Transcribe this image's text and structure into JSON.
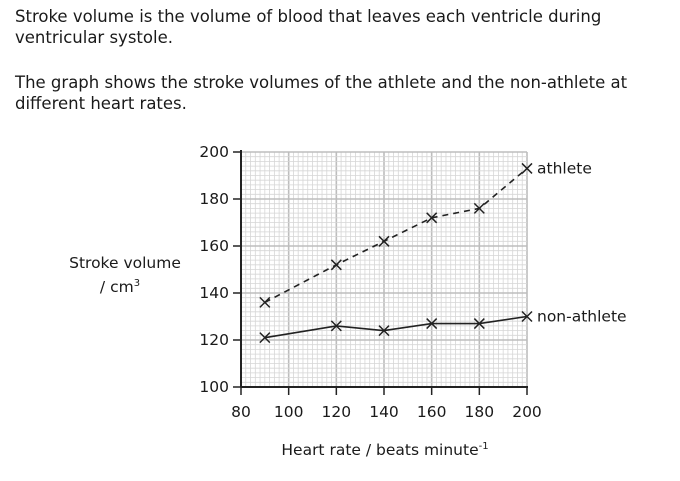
{
  "intro": "Stroke volume is the volume of blood that leaves each ventricle during ventricular systole.",
  "description": "The graph shows the stroke volumes of the athlete and the non-athlete at different heart rates.",
  "chart_data": {
    "type": "line",
    "title": "",
    "xlabel": "Heart rate / beats minute",
    "xlabel_sup": "-1",
    "ylabel_line1": "Stroke volume",
    "ylabel_line2": "/ cm",
    "ylabel_sup": "3",
    "xlim": [
      80,
      200
    ],
    "ylim": [
      100,
      200
    ],
    "xticks": [
      80,
      100,
      120,
      140,
      160,
      180,
      200
    ],
    "yticks": [
      100,
      120,
      140,
      160,
      180,
      200
    ],
    "grid": true,
    "x": [
      90,
      120,
      140,
      160,
      180,
      200
    ],
    "series": [
      {
        "name": "athlete",
        "style": "dashed",
        "values": [
          136,
          152,
          162,
          172,
          176,
          193
        ]
      },
      {
        "name": "non-athlete",
        "style": "solid",
        "values": [
          121,
          126,
          124,
          127,
          127,
          130
        ]
      }
    ]
  }
}
